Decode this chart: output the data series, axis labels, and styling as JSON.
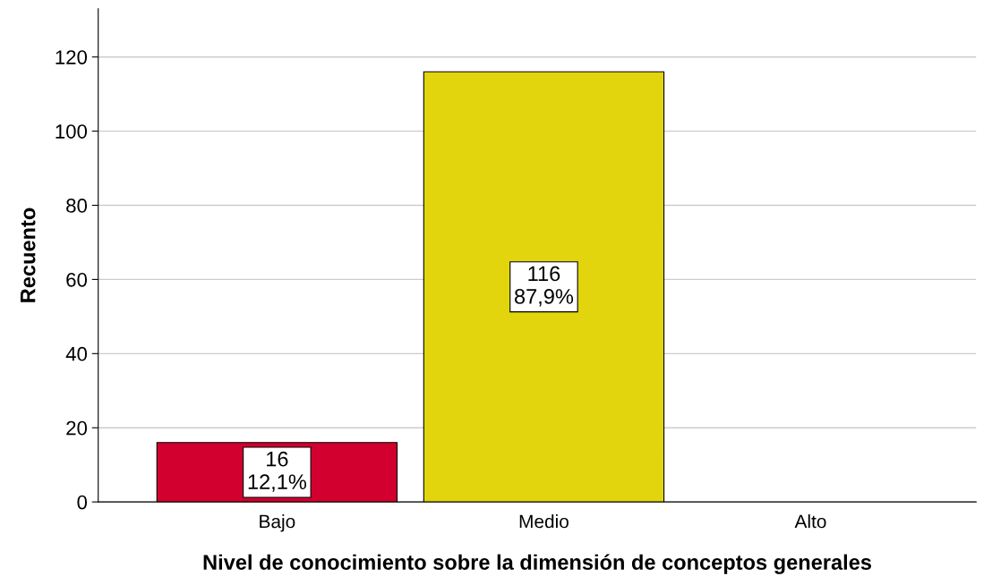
{
  "chart_data": {
    "type": "bar",
    "xlabel": "Nivel de conocimiento sobre la dimensión de conceptos generales",
    "ylabel": "Recuento",
    "categories": [
      "Bajo",
      "Medio",
      "Alto"
    ],
    "values": [
      16,
      116,
      0
    ],
    "colors": [
      "#d2002f",
      "#e2d50e",
      "#e2d50e"
    ],
    "value_labels": [
      "16\n12,1%",
      "116\n87,9%",
      null
    ],
    "ylim": [
      0,
      133
    ],
    "yticks": [
      0,
      20,
      40,
      60,
      80,
      100,
      120
    ],
    "grid": "y",
    "legend": false
  }
}
